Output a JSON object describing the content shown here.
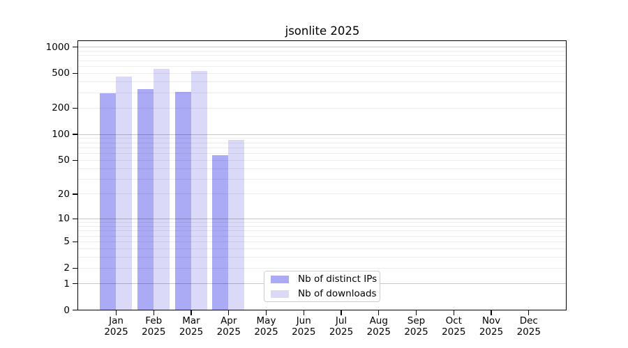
{
  "title": "jsonlite 2025",
  "chart_data": {
    "type": "bar",
    "title": "jsonlite 2025",
    "categories": [
      "Jan 2025",
      "Feb 2025",
      "Mar 2025",
      "Apr 2025",
      "May 2025",
      "Jun 2025",
      "Jul 2025",
      "Aug 2025",
      "Sep 2025",
      "Oct 2025",
      "Nov 2025",
      "Dec 2025"
    ],
    "months": [
      "Jan",
      "Feb",
      "Mar",
      "Apr",
      "May",
      "Jun",
      "Jul",
      "Aug",
      "Sep",
      "Oct",
      "Nov",
      "Dec"
    ],
    "year_label": "2025",
    "series": [
      {
        "name": "Nb of distinct IPs",
        "color": "#aaaaf5",
        "values": [
          292,
          327,
          305,
          57,
          0,
          0,
          0,
          0,
          0,
          0,
          0,
          0
        ]
      },
      {
        "name": "Nb of downloads",
        "color": "#dadaf8",
        "values": [
          452,
          562,
          530,
          85,
          0,
          0,
          0,
          0,
          0,
          0,
          0,
          0
        ]
      }
    ],
    "y_axis": {
      "scale": "log1p",
      "min": 0,
      "max": 1160,
      "tick_values": [
        0,
        1,
        2,
        5,
        10,
        20,
        50,
        100,
        200,
        500,
        1000
      ],
      "tick_labels": [
        "0",
        "1",
        "2",
        "5",
        "10",
        "20",
        "50",
        "100",
        "200",
        "500",
        "1000"
      ]
    },
    "grid": {
      "on": true,
      "major_values": [
        1,
        10,
        100,
        1000
      ],
      "minor_values": [
        2,
        3,
        4,
        5,
        6,
        7,
        8,
        9,
        20,
        30,
        40,
        50,
        60,
        70,
        80,
        90,
        200,
        300,
        400,
        500,
        600,
        700,
        800,
        900
      ]
    },
    "legend": {
      "position": "inside-bottom-center"
    },
    "colors": {
      "bar_ips": "#aaaaf5",
      "bar_downloads": "#dadaf8",
      "grid_major": "#c6c6c6",
      "grid_minor": "#ededed",
      "axis": "#000000",
      "background": "#ffffff"
    }
  }
}
